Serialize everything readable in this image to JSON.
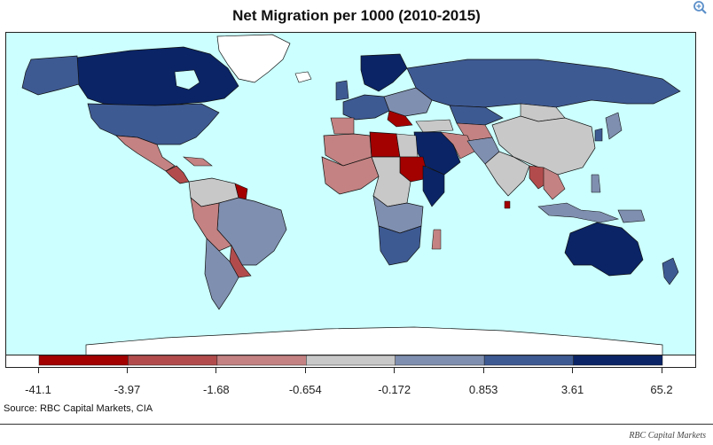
{
  "title": "Net Migration per 1000 (2010-2015)",
  "source": "Source: RBC Capital Markets, CIA",
  "brand": "RBC Capital Markets",
  "zoom_icon": "magnifier-zoom-icon",
  "legend": {
    "colors": [
      "#a30000",
      "#b24c4c",
      "#c48282",
      "#c8c8c8",
      "#7f8fb0",
      "#3e5a93",
      "#0a2466"
    ],
    "ticks": [
      "-41.1",
      "-3.97",
      "-1.68",
      "-0.654",
      "-0.172",
      "0.853",
      "3.61",
      "65.2"
    ]
  },
  "map_colors": {
    "ocean": "#ccffff",
    "land_neutral": "#ffffff",
    "bin1": "#a30000",
    "bin2": "#b24c4c",
    "bin3": "#c48282",
    "bin4": "#c8c8c8",
    "bin5": "#7f8fb0",
    "bin6": "#3e5a93",
    "bin7": "#0a2466"
  }
}
